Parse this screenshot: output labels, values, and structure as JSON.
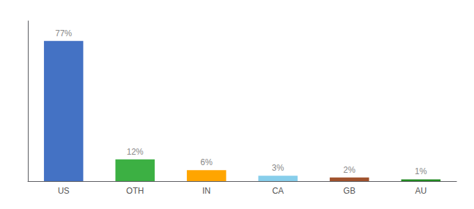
{
  "chart_data": {
    "type": "bar",
    "categories": [
      "US",
      "OTH",
      "IN",
      "CA",
      "GB",
      "AU"
    ],
    "values": [
      77,
      12,
      6,
      3,
      2,
      1
    ],
    "value_labels": [
      "77%",
      "12%",
      "6%",
      "3%",
      "2%",
      "1%"
    ],
    "colors": [
      "#4472C4",
      "#3CB043",
      "#FFA500",
      "#87CEEB",
      "#A0522D",
      "#228B22"
    ],
    "ylim": [
      0,
      88
    ],
    "grid": false,
    "data_labels": true,
    "tick_labels": "x"
  }
}
